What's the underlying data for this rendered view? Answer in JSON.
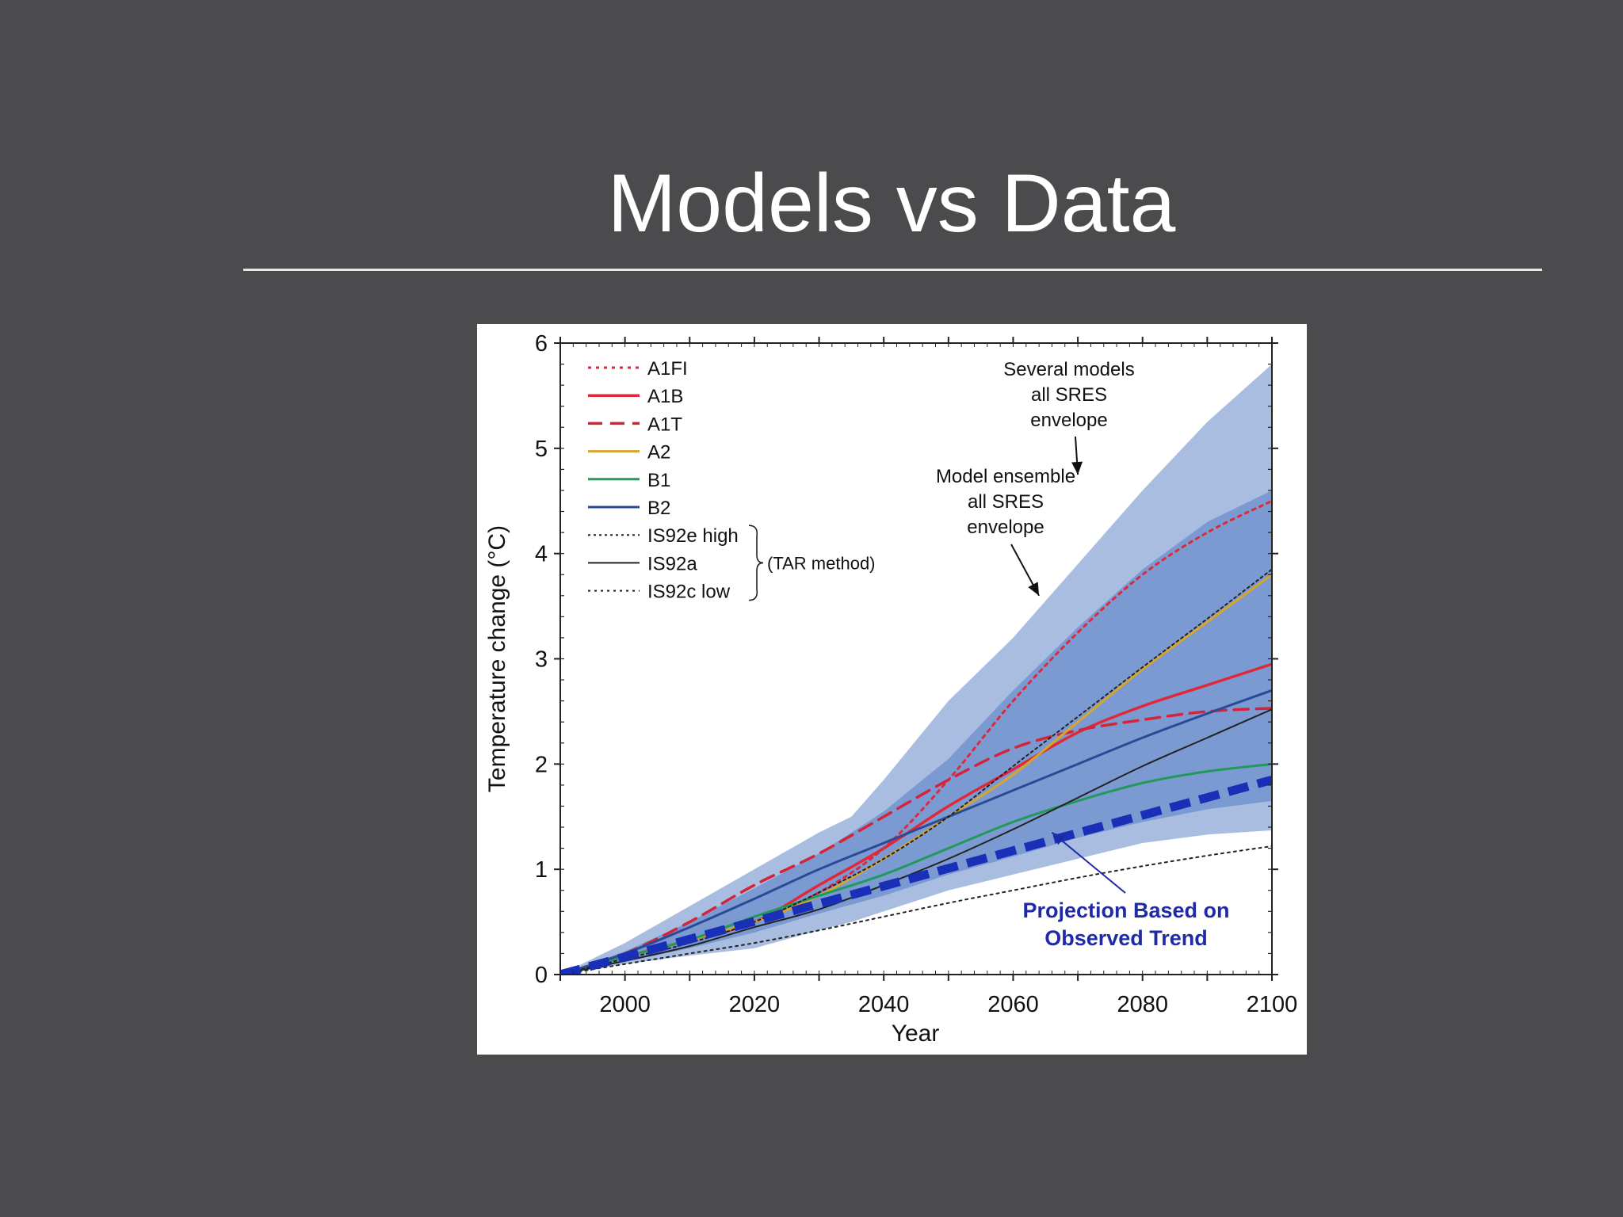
{
  "slide": {
    "title": "Models vs Data"
  },
  "colors": {
    "background": "#4b4a4c",
    "outer_envelope": "#a9bde0",
    "inner_envelope": "#7b9ad2",
    "A1FI": "#e0283a",
    "A1B": "#e0283a",
    "A1T": "#d4243a",
    "A2": "#d6a52b",
    "B1": "#1f9a5a",
    "B2": "#2a4a96",
    "IS92": "#222222",
    "observed_trend": "#1a2fb8"
  },
  "chart_data": {
    "type": "line",
    "title": "",
    "xlabel": "Year",
    "ylabel": "Temperature change (°C)",
    "xlim": [
      1990,
      2100
    ],
    "ylim": [
      0,
      6
    ],
    "x_ticks": [
      2000,
      2020,
      2040,
      2060,
      2080,
      2100
    ],
    "y_ticks": [
      0,
      1,
      2,
      3,
      4,
      5,
      6
    ],
    "grid": false,
    "legend_position": "top-left",
    "legend_group_label": "(TAR method)",
    "envelopes": [
      {
        "name": "Several models all SRES envelope",
        "x": [
          1990,
          2000,
          2010,
          2020,
          2030,
          2035,
          2040,
          2050,
          2060,
          2070,
          2080,
          2090,
          2100
        ],
        "upper": [
          0,
          0.3,
          0.65,
          1.0,
          1.35,
          1.5,
          1.85,
          2.6,
          3.2,
          3.9,
          4.6,
          5.25,
          5.8
        ],
        "lower": [
          0,
          0.1,
          0.18,
          0.25,
          0.42,
          0.5,
          0.6,
          0.8,
          0.95,
          1.1,
          1.25,
          1.33,
          1.37
        ]
      },
      {
        "name": "Model ensemble all SRES envelope",
        "x": [
          1990,
          2000,
          2010,
          2020,
          2030,
          2040,
          2050,
          2060,
          2070,
          2080,
          2090,
          2100
        ],
        "upper": [
          0,
          0.22,
          0.5,
          0.82,
          1.15,
          1.55,
          2.05,
          2.7,
          3.3,
          3.85,
          4.3,
          4.6
        ],
        "lower": [
          0,
          0.12,
          0.25,
          0.4,
          0.58,
          0.75,
          0.95,
          1.12,
          1.3,
          1.45,
          1.57,
          1.65
        ]
      }
    ],
    "series": [
      {
        "name": "A1FI",
        "style": "dotted",
        "x": [
          1990,
          2000,
          2010,
          2020,
          2030,
          2040,
          2050,
          2060,
          2070,
          2080,
          2090,
          2100
        ],
        "values": [
          0,
          0.17,
          0.33,
          0.5,
          0.78,
          1.2,
          1.85,
          2.6,
          3.25,
          3.8,
          4.2,
          4.5
        ]
      },
      {
        "name": "A1B",
        "style": "solid",
        "x": [
          1990,
          2000,
          2010,
          2020,
          2030,
          2040,
          2050,
          2060,
          2070,
          2080,
          2090,
          2100
        ],
        "values": [
          0,
          0.17,
          0.33,
          0.5,
          0.85,
          1.2,
          1.6,
          1.95,
          2.3,
          2.55,
          2.75,
          2.95
        ]
      },
      {
        "name": "A1T",
        "style": "dashed",
        "x": [
          1990,
          2000,
          2010,
          2020,
          2030,
          2040,
          2050,
          2060,
          2070,
          2080,
          2090,
          2100
        ],
        "values": [
          0,
          0.2,
          0.5,
          0.85,
          1.15,
          1.5,
          1.85,
          2.15,
          2.32,
          2.42,
          2.5,
          2.53
        ]
      },
      {
        "name": "A2",
        "style": "solid",
        "x": [
          1990,
          2000,
          2010,
          2020,
          2030,
          2040,
          2050,
          2060,
          2070,
          2080,
          2090,
          2100
        ],
        "values": [
          0,
          0.17,
          0.33,
          0.5,
          0.75,
          1.1,
          1.5,
          1.9,
          2.4,
          2.9,
          3.35,
          3.8
        ]
      },
      {
        "name": "B1",
        "style": "solid",
        "x": [
          1990,
          2000,
          2010,
          2020,
          2030,
          2040,
          2050,
          2060,
          2070,
          2080,
          2090,
          2100
        ],
        "values": [
          0,
          0.17,
          0.33,
          0.55,
          0.75,
          0.95,
          1.2,
          1.45,
          1.65,
          1.82,
          1.93,
          2.0
        ]
      },
      {
        "name": "B2",
        "style": "solid",
        "x": [
          1990,
          2000,
          2010,
          2020,
          2030,
          2040,
          2050,
          2060,
          2070,
          2080,
          2090,
          2100
        ],
        "values": [
          0,
          0.2,
          0.45,
          0.72,
          1.0,
          1.25,
          1.5,
          1.75,
          2.0,
          2.25,
          2.48,
          2.7
        ]
      },
      {
        "name": "IS92e high",
        "style": "dotted",
        "x": [
          1990,
          2000,
          2010,
          2020,
          2030,
          2040,
          2050,
          2060,
          2070,
          2080,
          2090,
          2100
        ],
        "values": [
          0,
          0.15,
          0.3,
          0.5,
          0.78,
          1.1,
          1.5,
          1.98,
          2.45,
          2.92,
          3.38,
          3.85
        ]
      },
      {
        "name": "IS92a",
        "style": "solid",
        "x": [
          1990,
          2000,
          2010,
          2020,
          2030,
          2040,
          2050,
          2060,
          2070,
          2080,
          2090,
          2100
        ],
        "values": [
          0,
          0.13,
          0.27,
          0.45,
          0.62,
          0.85,
          1.1,
          1.38,
          1.68,
          1.98,
          2.25,
          2.52
        ]
      },
      {
        "name": "IS92c low",
        "style": "dotted",
        "x": [
          1990,
          2000,
          2010,
          2020,
          2030,
          2040,
          2050,
          2060,
          2070,
          2080,
          2090,
          2100
        ],
        "values": [
          0,
          0.1,
          0.2,
          0.3,
          0.42,
          0.55,
          0.68,
          0.8,
          0.92,
          1.03,
          1.13,
          1.22
        ]
      },
      {
        "name": "Projection Based on Observed Trend",
        "style": "thick-dashed",
        "x": [
          1990,
          2100
        ],
        "values": [
          0,
          1.85
        ]
      }
    ],
    "annotations": [
      {
        "lines": [
          "Several models",
          "all SRES",
          "envelope"
        ],
        "pointer_to": {
          "x": 2070,
          "y": 4.75
        }
      },
      {
        "lines": [
          "Model ensemble",
          "all SRES",
          "envelope"
        ],
        "pointer_to": {
          "x": 2064,
          "y": 3.6
        }
      },
      {
        "lines": [
          "Projection Based on",
          "Observed Trend"
        ],
        "pointer_to": {
          "x": 2066,
          "y": 1.35
        }
      }
    ]
  }
}
